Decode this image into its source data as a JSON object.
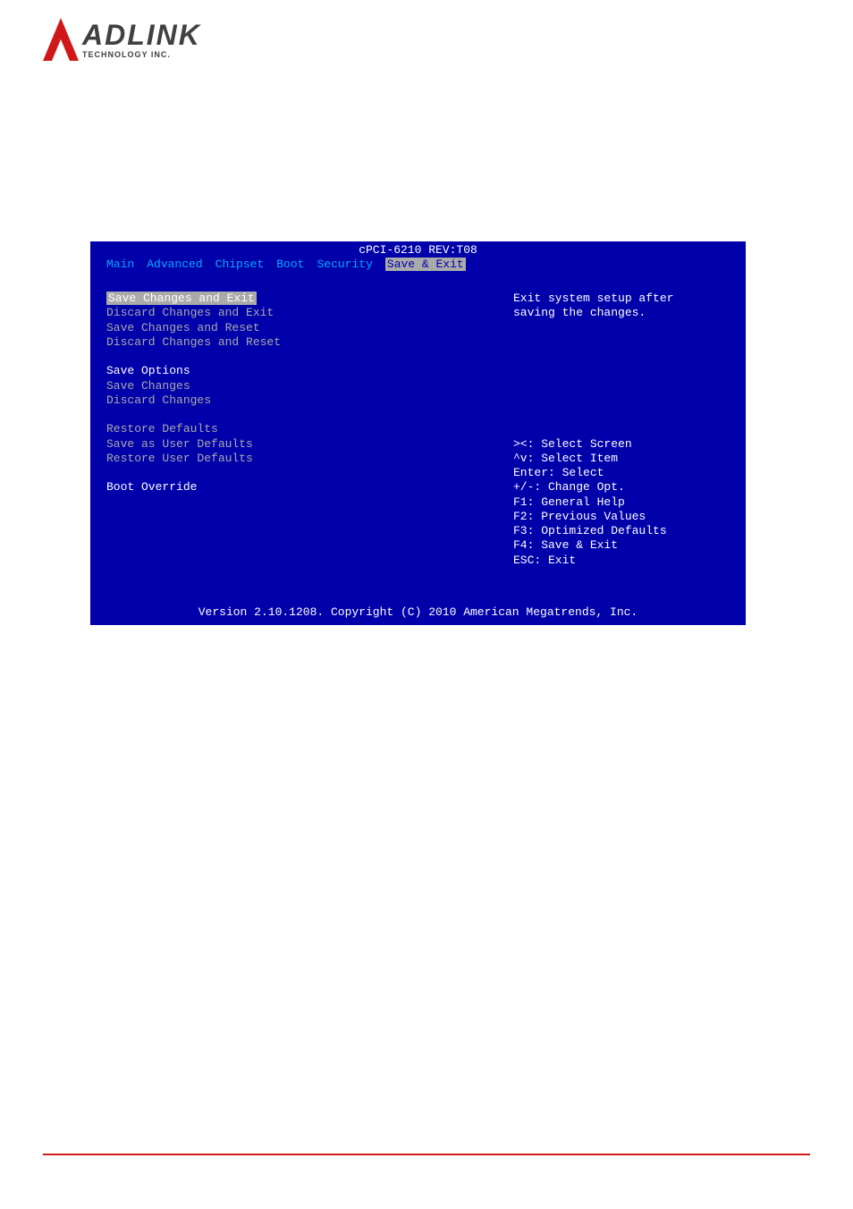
{
  "logo": {
    "main": "ADLINK",
    "sub": "TECHNOLOGY INC."
  },
  "bios": {
    "title": "cPCI-6210 REV:T08",
    "menu": [
      "Main",
      "Advanced",
      "Chipset",
      "Boot",
      "Security",
      "Save & Exit"
    ],
    "menu_selected_index": 5,
    "left_items": [
      {
        "text": "Save Changes and Exit",
        "selected": true
      },
      {
        "text": "Discard Changes and Exit"
      },
      {
        "text": "Save Changes and Reset"
      },
      {
        "text": "Discard Changes and Reset"
      },
      {
        "text": ""
      },
      {
        "text": "Save Options",
        "white": true
      },
      {
        "text": "Save Changes"
      },
      {
        "text": "Discard Changes"
      },
      {
        "text": ""
      },
      {
        "text": "Restore Defaults"
      },
      {
        "text": "Save as User Defaults"
      },
      {
        "text": "Restore User Defaults"
      },
      {
        "text": ""
      },
      {
        "text": "Boot Override",
        "white": true
      }
    ],
    "help_text": [
      "Exit system setup after",
      "saving the changes."
    ],
    "key_help": [
      "><: Select Screen",
      "^v: Select Item",
      "Enter: Select",
      "+/-: Change Opt.",
      "F1: General Help",
      "F2: Previous Values",
      "F3: Optimized Defaults",
      "F4: Save & Exit",
      "ESC: Exit"
    ],
    "footer": "Version 2.10.1208. Copyright (C) 2010 American Megatrends, Inc."
  },
  "colors": {
    "bios_bg": "#0000aa",
    "bios_text": "#ffffff",
    "bios_cyan": "#00aaff",
    "bios_gray": "#aaaaaa",
    "brand_red": "#d01818"
  }
}
